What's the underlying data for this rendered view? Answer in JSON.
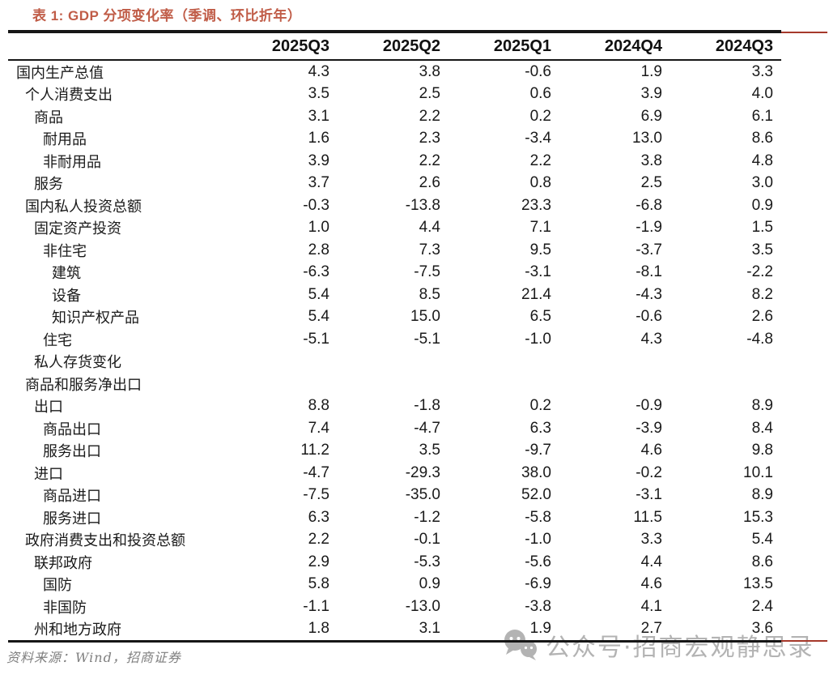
{
  "title": "表 1:  GDP 分项变化率（季调、环比折年）",
  "table": {
    "columns": [
      "2025Q3",
      "2025Q2",
      "2025Q1",
      "2024Q4",
      "2024Q3"
    ],
    "rows": [
      {
        "label": "国内生产总值",
        "indent": 0,
        "values": [
          "4.3",
          "3.8",
          "-0.6",
          "1.9",
          "3.3"
        ]
      },
      {
        "label": "个人消费支出",
        "indent": 1,
        "values": [
          "3.5",
          "2.5",
          "0.6",
          "3.9",
          "4.0"
        ]
      },
      {
        "label": "商品",
        "indent": 2,
        "values": [
          "3.1",
          "2.2",
          "0.2",
          "6.9",
          "6.1"
        ]
      },
      {
        "label": "耐用品",
        "indent": 3,
        "values": [
          "1.6",
          "2.3",
          "-3.4",
          "13.0",
          "8.6"
        ]
      },
      {
        "label": "非耐用品",
        "indent": 3,
        "values": [
          "3.9",
          "2.2",
          "2.2",
          "3.8",
          "4.8"
        ]
      },
      {
        "label": "服务",
        "indent": 2,
        "values": [
          "3.7",
          "2.6",
          "0.8",
          "2.5",
          "3.0"
        ]
      },
      {
        "label": "国内私人投资总额",
        "indent": 1,
        "values": [
          "-0.3",
          "-13.8",
          "23.3",
          "-6.8",
          "0.9"
        ]
      },
      {
        "label": "固定资产投资",
        "indent": 2,
        "values": [
          "1.0",
          "4.4",
          "7.1",
          "-1.9",
          "1.5"
        ]
      },
      {
        "label": "非住宅",
        "indent": 3,
        "values": [
          "2.8",
          "7.3",
          "9.5",
          "-3.7",
          "3.5"
        ]
      },
      {
        "label": "建筑",
        "indent": 4,
        "values": [
          "-6.3",
          "-7.5",
          "-3.1",
          "-8.1",
          "-2.2"
        ]
      },
      {
        "label": "设备",
        "indent": 4,
        "values": [
          "5.4",
          "8.5",
          "21.4",
          "-4.3",
          "8.2"
        ]
      },
      {
        "label": "知识产权产品",
        "indent": 4,
        "values": [
          "5.4",
          "15.0",
          "6.5",
          "-0.6",
          "2.6"
        ]
      },
      {
        "label": "住宅",
        "indent": 3,
        "values": [
          "-5.1",
          "-5.1",
          "-1.0",
          "4.3",
          "-4.8"
        ]
      },
      {
        "label": "私人存货变化",
        "indent": 2,
        "values": [
          "",
          "",
          "",
          "",
          ""
        ]
      },
      {
        "label": "商品和服务净出口",
        "indent": 1,
        "values": [
          "",
          "",
          "",
          "",
          ""
        ]
      },
      {
        "label": "出口",
        "indent": 2,
        "values": [
          "8.8",
          "-1.8",
          "0.2",
          "-0.9",
          "8.9"
        ]
      },
      {
        "label": "商品出口",
        "indent": 3,
        "values": [
          "7.4",
          "-4.7",
          "6.3",
          "-3.9",
          "8.4"
        ]
      },
      {
        "label": "服务出口",
        "indent": 3,
        "values": [
          "11.2",
          "3.5",
          "-9.7",
          "4.6",
          "9.8"
        ]
      },
      {
        "label": "进口",
        "indent": 2,
        "values": [
          "-4.7",
          "-29.3",
          "38.0",
          "-0.2",
          "10.1"
        ]
      },
      {
        "label": "商品进口",
        "indent": 3,
        "values": [
          "-7.5",
          "-35.0",
          "52.0",
          "-3.1",
          "8.9"
        ]
      },
      {
        "label": "服务进口",
        "indent": 3,
        "values": [
          "6.3",
          "-1.2",
          "-5.8",
          "11.5",
          "15.3"
        ]
      },
      {
        "label": "政府消费支出和投资总额",
        "indent": 1,
        "values": [
          "2.2",
          "-0.1",
          "-1.0",
          "3.3",
          "5.4"
        ]
      },
      {
        "label": "联邦政府",
        "indent": 2,
        "values": [
          "2.9",
          "-5.3",
          "-5.6",
          "4.4",
          "8.6"
        ]
      },
      {
        "label": "国防",
        "indent": 3,
        "values": [
          "5.8",
          "0.9",
          "-6.9",
          "4.6",
          "13.5"
        ]
      },
      {
        "label": "非国防",
        "indent": 3,
        "values": [
          "-1.1",
          "-13.0",
          "-3.8",
          "4.1",
          "2.4"
        ]
      },
      {
        "label": "州和地方政府",
        "indent": 2,
        "values": [
          "1.8",
          "3.1",
          "1.9",
          "2.7",
          "3.6"
        ]
      }
    ]
  },
  "source_note": "资料来源：Wind，招商证券",
  "watermark": {
    "icon": "wechat-icon",
    "text": "公众号·招商宏观静思录"
  },
  "colors": {
    "title": "#C05C47",
    "accent_line": "#A6392B",
    "table_border": "#161616",
    "text": "#1A1A1A",
    "source_note": "#7F7F7F",
    "watermark": "#B3B3B3"
  }
}
